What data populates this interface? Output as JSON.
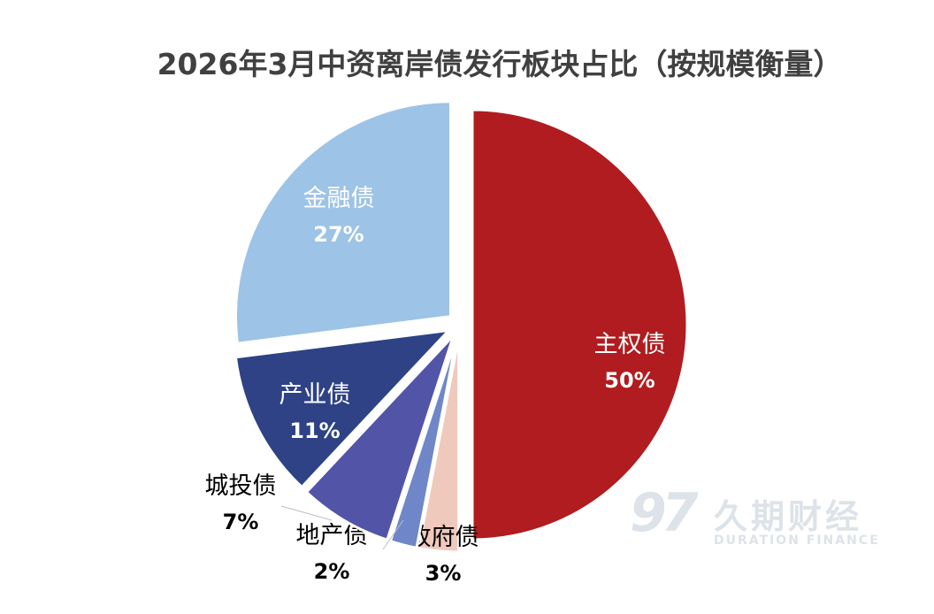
{
  "chart_data": {
    "type": "pie",
    "title": "2026年3月中资离岸债发行板块占比（按规模衡量）",
    "slices": [
      {
        "name": "主权债",
        "value": 50,
        "label": "50%",
        "color": "#b01c1f"
      },
      {
        "name": "政府债",
        "value": 3,
        "label": "3%",
        "color": "#f0c9bd"
      },
      {
        "name": "地产债",
        "value": 2,
        "label": "2%",
        "color": "#6f86c8"
      },
      {
        "name": "城投债",
        "value": 7,
        "label": "7%",
        "color": "#5254a8"
      },
      {
        "name": "产业债",
        "value": 11,
        "label": "11%",
        "color": "#2e4285"
      },
      {
        "name": "金融债",
        "value": 27,
        "label": "27%",
        "color": "#9dc3e6"
      }
    ]
  },
  "watermark": {
    "logo": "97",
    "name": "久期财经",
    "subtitle": "DURATION FINANCE"
  }
}
